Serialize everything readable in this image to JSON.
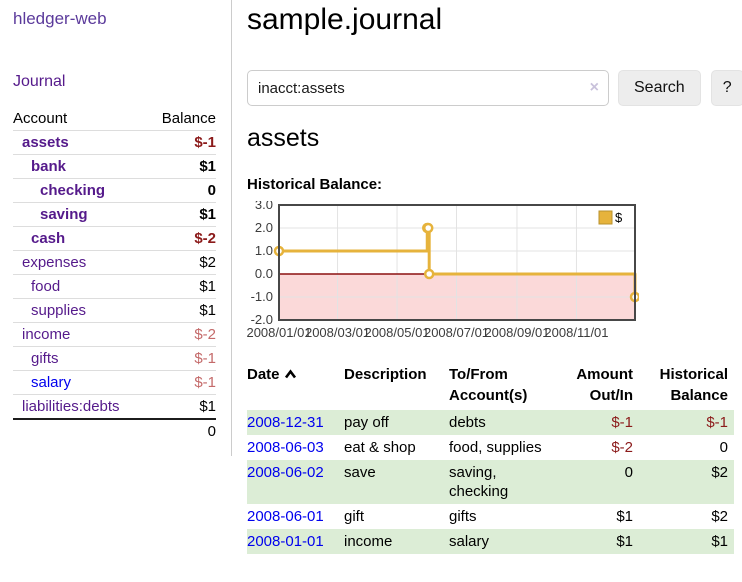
{
  "sidebar": {
    "brand": "hledger-web",
    "nav_journal": "Journal",
    "accounts_table": {
      "headers": {
        "account": "Account",
        "balance": "Balance"
      },
      "rows": [
        {
          "name": "assets",
          "balance": "$-1",
          "indent": 0,
          "bold": true,
          "balance_style": "negative",
          "link_style": "purple"
        },
        {
          "name": "bank",
          "balance": "$1",
          "indent": 1,
          "bold": true,
          "balance_style": "normal",
          "link_style": "purple"
        },
        {
          "name": "checking",
          "balance": "0",
          "indent": 2,
          "bold": true,
          "balance_style": "normal",
          "link_style": "purple"
        },
        {
          "name": "saving",
          "balance": "$1",
          "indent": 2,
          "bold": true,
          "balance_style": "normal",
          "link_style": "purple"
        },
        {
          "name": "cash",
          "balance": "$-2",
          "indent": 1,
          "bold": true,
          "balance_style": "negative",
          "link_style": "purple"
        },
        {
          "name": "expenses",
          "balance": "$2",
          "indent": 0,
          "bold": false,
          "balance_style": "normal",
          "link_style": "purple"
        },
        {
          "name": "food",
          "balance": "$1",
          "indent": 1,
          "bold": false,
          "balance_style": "normal",
          "link_style": "purple"
        },
        {
          "name": "supplies",
          "balance": "$1",
          "indent": 1,
          "bold": false,
          "balance_style": "normal",
          "link_style": "purple"
        },
        {
          "name": "income",
          "balance": "$-2",
          "indent": 0,
          "bold": false,
          "balance_style": "muted-negative",
          "link_style": "purple"
        },
        {
          "name": "gifts",
          "balance": "$-1",
          "indent": 1,
          "bold": false,
          "balance_style": "muted-negative",
          "link_style": "purple"
        },
        {
          "name": "salary",
          "balance": "$-1",
          "indent": 1,
          "bold": false,
          "balance_style": "muted-negative",
          "link_style": "blue"
        },
        {
          "name": "liabilities:debts",
          "balance": "$1",
          "indent": 0,
          "bold": false,
          "balance_style": "normal",
          "link_style": "purple"
        }
      ],
      "total": "0"
    }
  },
  "header": {
    "title": "sample.journal"
  },
  "search": {
    "value": "inacct:assets",
    "clear_label": "×",
    "button_label": "Search",
    "help_label": "?"
  },
  "account_page": {
    "title": "assets",
    "chart_label": "Historical Balance:"
  },
  "chart_data": {
    "type": "line",
    "step": true,
    "title": "Historical Balance:",
    "series": [
      {
        "name": "$",
        "color": "#E6B33C",
        "points": [
          {
            "date": "2008-01-01",
            "value": 1
          },
          {
            "date": "2008-06-01",
            "value": 2
          },
          {
            "date": "2008-06-02",
            "value": 2
          },
          {
            "date": "2008-06-03",
            "value": 0
          },
          {
            "date": "2008-12-31",
            "value": -1
          }
        ]
      }
    ],
    "ylim": [
      -2,
      3
    ],
    "yticks": [
      3.0,
      2.0,
      1.0,
      0.0,
      -1.0,
      -2.0
    ],
    "xticks": [
      "2008/01/01",
      "2008/03/01",
      "2008/05/01",
      "2008/07/01",
      "2008/09/01",
      "2008/11/01"
    ],
    "x_range": [
      "2008-01-01",
      "2008-12-31"
    ],
    "grid": true,
    "legend_position": "top-right",
    "negative_region_color": "#FBD9D9",
    "zero_line_color": "#8B1111",
    "grid_color": "#E3E3E3",
    "frame_color": "#474747",
    "tick_label_color": "#3c3c3c"
  },
  "register_table": {
    "columns": [
      {
        "label": "Date",
        "sorted": "asc"
      },
      {
        "label": "Description"
      },
      {
        "label": "To/From Account(s)"
      },
      {
        "label": "Amount Out/In"
      },
      {
        "label": "Historical Balance"
      }
    ],
    "rows": [
      {
        "date": "2008-12-31",
        "description": "pay off",
        "accounts": "debts",
        "amount": "$-1",
        "balance": "$-1"
      },
      {
        "date": "2008-06-03",
        "description": "eat & shop",
        "accounts": "food, supplies",
        "amount": "$-2",
        "balance": "0"
      },
      {
        "date": "2008-06-02",
        "description": "save",
        "accounts": "saving, checking",
        "amount": "0",
        "balance": "$2"
      },
      {
        "date": "2008-06-01",
        "description": "gift",
        "accounts": "gifts",
        "amount": "$1",
        "balance": "$2"
      },
      {
        "date": "2008-01-01",
        "description": "income",
        "accounts": "salary",
        "amount": "$1",
        "balance": "$1"
      }
    ]
  },
  "colors": {
    "link_purple": "#551A8B",
    "link_blue": "#0000EE",
    "negative": "#8B1A1A",
    "muted_negative": "#C46A6A",
    "row_stripe_green": "#DCEDD6",
    "accent_gold": "#E6B33C",
    "brand_purple": "#5B3A9B"
  }
}
